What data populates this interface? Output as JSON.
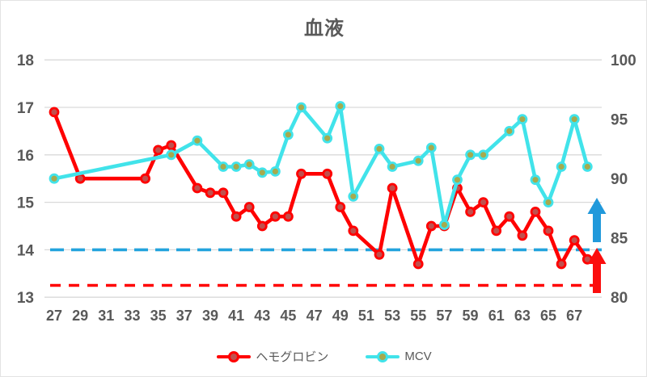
{
  "title": "血液",
  "colors": {
    "text": "#595959",
    "grid": "#d9d9d9",
    "hemoglobin_line": "#ff0000",
    "hemoglobin_marker_fill": "#c0504d",
    "mcv_line": "#41e3ea",
    "mcv_marker_fill": "#a6aa4e",
    "blue_dashed": "#23a3dd",
    "red_dashed": "#ff0000",
    "blue_arrow": "#2199db",
    "red_arrow": "#fb0d0d"
  },
  "chart_data": {
    "type": "line",
    "title": "血液",
    "xlabel": "",
    "ylabel_left": "",
    "ylabel_right": "",
    "x_range": [
      27,
      68
    ],
    "x_tick_labels": [
      27,
      29,
      31,
      33,
      35,
      37,
      39,
      41,
      43,
      45,
      47,
      49,
      51,
      53,
      55,
      57,
      59,
      61,
      63,
      65,
      67
    ],
    "left_axis": {
      "min": 13,
      "max": 18,
      "ticks": [
        18,
        17,
        16,
        15,
        14,
        13
      ]
    },
    "right_axis": {
      "min": 80,
      "max": 100,
      "ticks": [
        100,
        95,
        90,
        85,
        80
      ]
    },
    "grid": "horizontal-only",
    "legend_position": "bottom",
    "series": [
      {
        "name": "ヘモグロビン",
        "axis": "left",
        "color_key": "hemoglobin",
        "points": [
          [
            27,
            16.9
          ],
          [
            29,
            15.5
          ],
          [
            34,
            15.5
          ],
          [
            35,
            16.1
          ],
          [
            36,
            16.2
          ],
          [
            38,
            15.3
          ],
          [
            39,
            15.2
          ],
          [
            40,
            15.2
          ],
          [
            41,
            14.7
          ],
          [
            42,
            14.9
          ],
          [
            43,
            14.5
          ],
          [
            44,
            14.7
          ],
          [
            45,
            14.7
          ],
          [
            46,
            15.6
          ],
          [
            48,
            15.6
          ],
          [
            49,
            14.9
          ],
          [
            50,
            14.4
          ],
          [
            52,
            13.9
          ],
          [
            53,
            15.3
          ],
          [
            55,
            13.7
          ],
          [
            56,
            14.5
          ],
          [
            57,
            14.5
          ],
          [
            58,
            15.3
          ],
          [
            59,
            14.8
          ],
          [
            60,
            15.0
          ],
          [
            61,
            14.4
          ],
          [
            62,
            14.7
          ],
          [
            63,
            14.3
          ],
          [
            64,
            14.8
          ],
          [
            65,
            14.4
          ],
          [
            66,
            13.7
          ],
          [
            67,
            14.2
          ],
          [
            68,
            13.8
          ]
        ]
      },
      {
        "name": "MCV",
        "axis": "right",
        "color_key": "mcv",
        "points": [
          [
            27,
            90.0
          ],
          [
            36,
            92.0
          ],
          [
            38,
            93.2
          ],
          [
            40,
            91.0
          ],
          [
            41,
            91.0
          ],
          [
            42,
            91.2
          ],
          [
            43,
            90.5
          ],
          [
            44,
            90.6
          ],
          [
            45,
            93.7
          ],
          [
            46,
            96.0
          ],
          [
            48,
            93.4
          ],
          [
            49,
            96.1
          ],
          [
            50,
            88.5
          ],
          [
            52,
            92.5
          ],
          [
            53,
            91.0
          ],
          [
            55,
            91.5
          ],
          [
            56,
            92.6
          ],
          [
            57,
            86.1
          ],
          [
            58,
            89.9
          ],
          [
            59,
            92.0
          ],
          [
            60,
            92.0
          ],
          [
            62,
            94.0
          ],
          [
            63,
            95.0
          ],
          [
            64,
            89.9
          ],
          [
            65,
            88.0
          ],
          [
            66,
            91.0
          ],
          [
            67,
            95.0
          ],
          [
            68,
            91.0
          ]
        ]
      }
    ],
    "reference_lines": [
      {
        "name": "blue-dashed-reference-line",
        "axis": "left",
        "value": 14.0,
        "style": "dashed",
        "color_key": "blue_dashed"
      },
      {
        "name": "red-dashed-reference-line",
        "axis": "left",
        "value": 13.25,
        "style": "dashed",
        "color_key": "red_dashed"
      }
    ],
    "annotations": [
      {
        "name": "blue-up-arrow",
        "shape": "arrow-up",
        "color_key": "blue_arrow"
      },
      {
        "name": "red-up-arrow",
        "shape": "arrow-up",
        "color_key": "red_arrow"
      }
    ]
  },
  "legend": {
    "items": [
      {
        "label": "ヘモグロビン",
        "key": "hemoglobin"
      },
      {
        "label": "MCV",
        "key": "mcv"
      }
    ]
  }
}
